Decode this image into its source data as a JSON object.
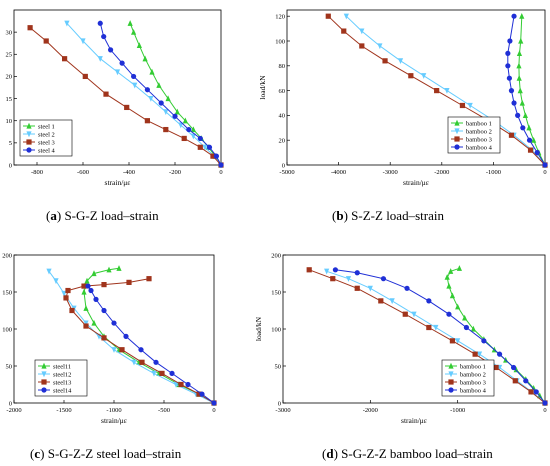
{
  "captions": [
    {
      "letter": "a",
      "text": " S-G-Z load–strain"
    },
    {
      "letter": "b",
      "text": " S-Z-Z load–strain"
    },
    {
      "letter": "c",
      "text": " S-G-Z-Z steel load–strain"
    },
    {
      "letter": "d",
      "text": " S-G-Z-Z bamboo load–strain"
    }
  ],
  "colors": {
    "s1": "#33cc33",
    "s2": "#66ccff",
    "s3": "#a0341c",
    "s4": "#1f2fd6"
  },
  "chart_data": [
    {
      "type": "line",
      "xlabel": "strain/με",
      "ylabel": "load/kN",
      "xlim": [
        -900,
        0
      ],
      "ylim": [
        0,
        35
      ],
      "xticks": [
        -800,
        -600,
        -400,
        -200,
        0
      ],
      "yticks": [
        0,
        5,
        10,
        15,
        20,
        25,
        30
      ],
      "xtick_labels": [
        "-800",
        "-600",
        "-400",
        "-200",
        "0"
      ],
      "ytick_labels": [
        "0",
        "5",
        "10",
        "15",
        "20",
        "25",
        "30"
      ],
      "legend_position": "bottom-left",
      "series": [
        {
          "name": "steel 1",
          "marker": "triangle-up",
          "color": "#33cc33",
          "x": [
            0,
            -25,
            -55,
            -85,
            -120,
            -155,
            -190,
            -230,
            -270,
            -300,
            -330,
            -355,
            -380,
            -395
          ],
          "y": [
            0,
            2,
            4,
            6,
            8,
            10,
            12,
            15,
            18,
            21,
            24,
            27,
            30,
            32
          ]
        },
        {
          "name": "steel 2",
          "marker": "triangle-down",
          "color": "#66ccff",
          "x": [
            0,
            -30,
            -70,
            -120,
            -175,
            -240,
            -305,
            -375,
            -450,
            -525,
            -600,
            -670
          ],
          "y": [
            0,
            2,
            4,
            6.5,
            9,
            12,
            15,
            18,
            21,
            24,
            28,
            32
          ]
        },
        {
          "name": "steel 3",
          "marker": "square",
          "color": "#a0341c",
          "x": [
            0,
            -35,
            -90,
            -160,
            -240,
            -320,
            -410,
            -500,
            -590,
            -680,
            -760,
            -830
          ],
          "y": [
            0,
            2,
            4,
            6,
            8,
            10,
            13,
            16,
            20,
            24,
            28,
            31
          ]
        },
        {
          "name": "steel 4",
          "marker": "circle",
          "color": "#1f2fd6",
          "x": [
            0,
            -20,
            -50,
            -90,
            -140,
            -200,
            -260,
            -320,
            -380,
            -430,
            -480,
            -510,
            -525
          ],
          "y": [
            0,
            2,
            4,
            6,
            8,
            11,
            14,
            17,
            20,
            23,
            26,
            29,
            32
          ]
        }
      ]
    },
    {
      "type": "line",
      "xlabel": "strain/με",
      "ylabel": "load/kN",
      "xlim": [
        -5000,
        0
      ],
      "ylim": [
        0,
        125
      ],
      "xticks": [
        -5000,
        -4000,
        -3000,
        -2000,
        -1000,
        0
      ],
      "yticks": [
        0,
        20,
        40,
        60,
        80,
        100,
        120
      ],
      "xtick_labels": [
        "-5000",
        "-4000",
        "-3000",
        "-2000",
        "-1000",
        "0"
      ],
      "ytick_labels": [
        "0",
        "20",
        "40",
        "60",
        "80",
        "100",
        "120"
      ],
      "legend_position": "bottom-right",
      "series": [
        {
          "name": "bamboo 1",
          "marker": "triangle-up",
          "color": "#33cc33",
          "x": [
            0,
            -120,
            -220,
            -310,
            -380,
            -440,
            -480,
            -500,
            -505,
            -495,
            -470,
            -450
          ],
          "y": [
            0,
            10,
            20,
            30,
            40,
            50,
            60,
            70,
            80,
            90,
            100,
            120
          ]
        },
        {
          "name": "bamboo 2",
          "marker": "triangle-down",
          "color": "#66ccff",
          "x": [
            0,
            -250,
            -600,
            -1000,
            -1450,
            -1900,
            -2350,
            -2800,
            -3200,
            -3550,
            -3850
          ],
          "y": [
            0,
            12,
            24,
            36,
            48,
            60,
            72,
            84,
            96,
            108,
            120
          ]
        },
        {
          "name": "bamboo 3",
          "marker": "square",
          "color": "#a0341c",
          "x": [
            0,
            -280,
            -650,
            -1100,
            -1600,
            -2100,
            -2600,
            -3100,
            -3550,
            -3900,
            -4200
          ],
          "y": [
            0,
            12,
            24,
            36,
            48,
            60,
            72,
            84,
            96,
            108,
            120
          ]
        },
        {
          "name": "bamboo 4",
          "marker": "circle",
          "color": "#1f2fd6",
          "x": [
            0,
            -150,
            -300,
            -430,
            -530,
            -600,
            -650,
            -690,
            -720,
            -720,
            -680,
            -600
          ],
          "y": [
            0,
            10,
            20,
            30,
            40,
            50,
            60,
            70,
            80,
            90,
            100,
            120
          ]
        }
      ]
    },
    {
      "type": "line",
      "xlabel": "strain/με",
      "ylabel": "load/kN",
      "xlim": [
        -2000,
        0
      ],
      "ylim": [
        0,
        200
      ],
      "xticks": [
        -2000,
        -1500,
        -1000,
        -500,
        0
      ],
      "yticks": [
        0,
        50,
        100,
        150,
        200
      ],
      "xtick_labels": [
        "-2000",
        "-1500",
        "-1000",
        "-500",
        "0"
      ],
      "ytick_labels": [
        "0",
        "50",
        "100",
        "150",
        "200"
      ],
      "legend_position": "bottom-left",
      "series": [
        {
          "name": "steel11",
          "marker": "triangle-up",
          "color": "#33cc33",
          "x": [
            0,
            -150,
            -350,
            -550,
            -750,
            -950,
            -1100,
            -1200,
            -1280,
            -1300,
            -1270,
            -1200,
            -1050,
            -950
          ],
          "y": [
            0,
            12,
            25,
            40,
            55,
            72,
            90,
            108,
            128,
            150,
            165,
            175,
            180,
            182
          ]
        },
        {
          "name": "steel12",
          "marker": "triangle-down",
          "color": "#66ccff",
          "x": [
            0,
            -180,
            -380,
            -600,
            -800,
            -1000,
            -1150,
            -1280,
            -1400,
            -1500,
            -1580,
            -1650
          ],
          "y": [
            0,
            12,
            25,
            40,
            55,
            72,
            90,
            108,
            128,
            148,
            165,
            178
          ]
        },
        {
          "name": "steel13",
          "marker": "square",
          "color": "#a0341c",
          "x": [
            0,
            -150,
            -330,
            -520,
            -720,
            -920,
            -1100,
            -1280,
            -1420,
            -1480,
            -1460,
            -1300,
            -1100,
            -850,
            -650
          ],
          "y": [
            0,
            12,
            25,
            40,
            55,
            72,
            88,
            104,
            125,
            142,
            152,
            158,
            160,
            163,
            168
          ]
        },
        {
          "name": "steel14",
          "marker": "circle",
          "color": "#1f2fd6",
          "x": [
            0,
            -120,
            -260,
            -420,
            -580,
            -730,
            -880,
            -1000,
            -1100,
            -1180,
            -1230,
            -1260
          ],
          "y": [
            0,
            12,
            25,
            40,
            55,
            72,
            90,
            108,
            125,
            140,
            152,
            158
          ]
        }
      ]
    },
    {
      "type": "line",
      "xlabel": "strain/με",
      "ylabel": "load/kN",
      "xlim": [
        -3000,
        0
      ],
      "ylim": [
        0,
        200
      ],
      "xticks": [
        -3000,
        -2000,
        -1000,
        0
      ],
      "yticks": [
        0,
        50,
        100,
        150,
        200
      ],
      "xtick_labels": [
        "-3000",
        "-2000",
        "-1000",
        "0"
      ],
      "ytick_labels": [
        "0",
        "50",
        "100",
        "150",
        "200"
      ],
      "legend_position": "bottom-right",
      "series": [
        {
          "name": "bamboo 1",
          "marker": "triangle-up",
          "color": "#33cc33",
          "x": [
            0,
            -60,
            -130,
            -220,
            -330,
            -450,
            -580,
            -700,
            -820,
            -920,
            -1000,
            -1060,
            -1100,
            -1120,
            -1080,
            -980
          ],
          "y": [
            0,
            10,
            20,
            32,
            45,
            58,
            72,
            86,
            100,
            115,
            130,
            145,
            158,
            170,
            178,
            182
          ]
        },
        {
          "name": "bamboo 2",
          "marker": "triangle-down",
          "color": "#66ccff",
          "x": [
            0,
            -150,
            -320,
            -520,
            -750,
            -1000,
            -1250,
            -1500,
            -1750,
            -2000,
            -2250,
            -2500
          ],
          "y": [
            0,
            15,
            30,
            48,
            66,
            84,
            102,
            120,
            138,
            155,
            168,
            178
          ]
        },
        {
          "name": "bamboo 3",
          "marker": "square",
          "color": "#a0341c",
          "x": [
            0,
            -160,
            -340,
            -560,
            -800,
            -1060,
            -1330,
            -1600,
            -1880,
            -2150,
            -2430,
            -2700
          ],
          "y": [
            0,
            15,
            30,
            48,
            66,
            84,
            102,
            120,
            138,
            155,
            168,
            180
          ]
        },
        {
          "name": "bamboo 4",
          "marker": "circle",
          "color": "#1f2fd6",
          "x": [
            0,
            -100,
            -220,
            -360,
            -520,
            -700,
            -900,
            -1100,
            -1330,
            -1580,
            -1850,
            -2150,
            -2400
          ],
          "y": [
            0,
            15,
            30,
            48,
            66,
            84,
            102,
            120,
            138,
            155,
            168,
            176,
            180
          ]
        }
      ]
    }
  ]
}
